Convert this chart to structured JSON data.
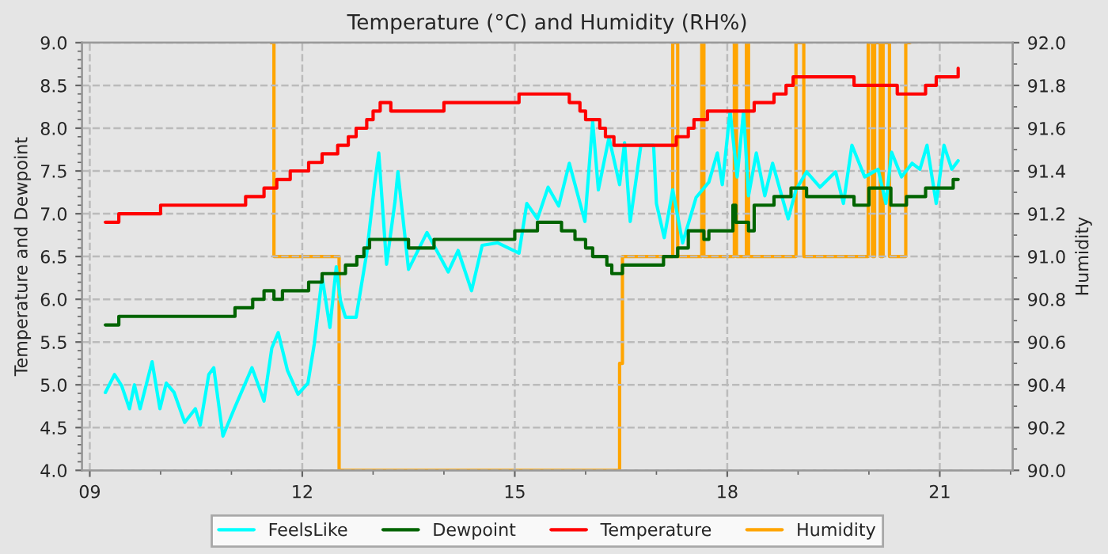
{
  "chart_data": {
    "type": "line",
    "title": "Temperature (°C) and Humidity (RH%)",
    "ylabel": "Temperature and Dewpoint",
    "y2label": "Humidity",
    "xlim": [
      8.89,
      22.03
    ],
    "xticks": [
      {
        "value": 9,
        "label": "09"
      },
      {
        "value": 10,
        "label": null
      },
      {
        "value": 11,
        "label": null
      },
      12,
      {
        "value": 13,
        "label": null
      },
      {
        "value": 14,
        "label": null
      },
      15,
      {
        "value": 16,
        "label": null
      },
      {
        "value": 17,
        "label": null
      },
      18,
      {
        "value": 19,
        "label": null
      },
      {
        "value": 20,
        "label": null
      },
      21,
      {
        "value": 22,
        "label": null
      }
    ],
    "ylim": [
      4.0,
      9.0
    ],
    "yticks": [
      {
        "value": 4.0,
        "label": "4.0"
      },
      {
        "value": 4.1,
        "label": null
      },
      {
        "value": 4.2,
        "label": null
      },
      {
        "value": 4.3,
        "label": null
      },
      {
        "value": 4.4,
        "label": null
      },
      4.5,
      {
        "value": 4.6,
        "label": null
      },
      {
        "value": 4.7,
        "label": null
      },
      {
        "value": 4.8,
        "label": null
      },
      {
        "value": 4.9,
        "label": null
      },
      {
        "value": 5.0,
        "label": "5.0"
      },
      {
        "value": 5.1,
        "label": null
      },
      {
        "value": 5.2,
        "label": null
      },
      {
        "value": 5.3,
        "label": null
      },
      {
        "value": 5.4,
        "label": null
      },
      5.5,
      {
        "value": 5.6,
        "label": null
      },
      {
        "value": 5.7,
        "label": null
      },
      {
        "value": 5.8,
        "label": null
      },
      {
        "value": 5.9,
        "label": null
      },
      {
        "value": 6.0,
        "label": "6.0"
      },
      {
        "value": 6.1,
        "label": null
      },
      {
        "value": 6.2,
        "label": null
      },
      {
        "value": 6.3,
        "label": null
      },
      {
        "value": 6.4,
        "label": null
      },
      6.5,
      {
        "value": 6.6,
        "label": null
      },
      {
        "value": 6.7,
        "label": null
      },
      {
        "value": 6.8,
        "label": null
      },
      {
        "value": 6.9,
        "label": null
      },
      {
        "value": 7.0,
        "label": "7.0"
      },
      {
        "value": 7.1,
        "label": null
      },
      {
        "value": 7.2,
        "label": null
      },
      {
        "value": 7.3,
        "label": null
      },
      {
        "value": 7.4,
        "label": null
      },
      7.5,
      {
        "value": 7.6,
        "label": null
      },
      {
        "value": 7.7,
        "label": null
      },
      {
        "value": 7.8,
        "label": null
      },
      {
        "value": 7.9,
        "label": null
      },
      {
        "value": 8.0,
        "label": "8.0"
      },
      {
        "value": 8.1,
        "label": null
      },
      {
        "value": 8.2,
        "label": null
      },
      {
        "value": 8.3,
        "label": null
      },
      {
        "value": 8.4,
        "label": null
      },
      8.5,
      {
        "value": 8.6,
        "label": null
      },
      {
        "value": 8.7,
        "label": null
      },
      {
        "value": 8.8,
        "label": null
      },
      {
        "value": 8.9,
        "label": null
      },
      {
        "value": 9.0,
        "label": "9.0"
      }
    ],
    "y2lim": [
      90.0,
      92.0
    ],
    "y2ticks": [
      {
        "value": 90.0,
        "label": "90.0"
      },
      {
        "value": 90.1,
        "label": null
      },
      90.2,
      {
        "value": 90.3,
        "label": null
      },
      90.4,
      {
        "value": 90.5,
        "label": null
      },
      90.6,
      {
        "value": 90.7,
        "label": null
      },
      90.8,
      {
        "value": 90.9,
        "label": null
      },
      {
        "value": 91.0,
        "label": "91.0"
      },
      {
        "value": 91.1,
        "label": null
      },
      91.2,
      {
        "value": 91.3,
        "label": null
      },
      91.4,
      {
        "value": 91.5,
        "label": null
      },
      91.6,
      {
        "value": 91.7,
        "label": null
      },
      91.8,
      {
        "value": 91.9,
        "label": null
      },
      {
        "value": 92.0,
        "label": "92.0"
      }
    ],
    "grid": true,
    "legend": "bottom",
    "series": [
      {
        "name": "FeelsLike",
        "color": "#00ffff",
        "x": [
          9.22,
          9.35,
          9.45,
          9.56,
          9.63,
          9.71,
          9.88,
          9.99,
          10.08,
          10.19,
          10.34,
          10.49,
          10.56,
          10.68,
          10.75,
          10.88,
          11.05,
          11.29,
          11.46,
          11.57,
          11.66,
          11.79,
          11.94,
          12.08,
          12.17,
          12.28,
          12.39,
          12.48,
          12.54,
          12.61,
          12.76,
          12.91,
          13.02,
          13.08,
          13.19,
          13.31,
          13.35,
          13.5,
          13.76,
          14.06,
          14.2,
          14.39,
          14.54,
          14.76,
          15.06,
          15.17,
          15.32,
          15.47,
          15.62,
          15.77,
          15.99,
          16.1,
          16.18,
          16.33,
          16.48,
          16.55,
          16.63,
          16.78,
          16.96,
          17.0,
          17.11,
          17.23,
          17.37,
          17.56,
          17.74,
          17.86,
          17.93,
          18.04,
          18.14,
          18.23,
          18.3,
          18.41,
          18.53,
          18.64,
          18.86,
          18.97,
          19.12,
          19.31,
          19.53,
          19.64,
          19.76,
          19.94,
          20.13,
          20.24,
          20.32,
          20.46,
          20.61,
          20.72,
          20.82,
          20.95,
          21.06,
          21.17,
          21.26
        ],
        "values": [
          4.91,
          5.12,
          4.99,
          4.72,
          5.0,
          4.72,
          5.27,
          4.72,
          5.02,
          4.91,
          4.56,
          4.72,
          4.53,
          5.12,
          5.2,
          4.4,
          4.74,
          5.2,
          4.81,
          5.43,
          5.61,
          5.17,
          4.89,
          5.02,
          5.48,
          6.26,
          5.67,
          6.38,
          5.98,
          5.79,
          5.79,
          6.54,
          7.34,
          7.71,
          6.41,
          7.15,
          7.49,
          6.35,
          6.78,
          6.32,
          6.57,
          6.1,
          6.63,
          6.66,
          6.54,
          7.12,
          6.94,
          7.31,
          7.09,
          7.59,
          6.91,
          8.08,
          7.28,
          7.89,
          7.34,
          7.83,
          6.91,
          7.8,
          7.8,
          7.12,
          6.72,
          7.28,
          6.66,
          7.19,
          7.37,
          7.71,
          7.34,
          8.2,
          7.43,
          8.2,
          7.21,
          7.71,
          7.21,
          7.59,
          6.94,
          7.28,
          7.49,
          7.31,
          7.49,
          7.12,
          7.8,
          7.43,
          7.52,
          7.12,
          7.72,
          7.43,
          7.59,
          7.52,
          7.8,
          7.12,
          7.8,
          7.52,
          7.62
        ]
      },
      {
        "name": "Dewpoint",
        "type": "step",
        "color": "#006400",
        "x": [
          9.22,
          9.41,
          11.05,
          11.3,
          11.46,
          11.6,
          11.72,
          12.09,
          12.28,
          12.61,
          12.77,
          12.87,
          12.95,
          13.5,
          13.86,
          15.0,
          15.32,
          15.66,
          15.85,
          16.0,
          16.1,
          16.3,
          16.37,
          16.52,
          17.1,
          17.3,
          17.45,
          17.67,
          17.74,
          18.08,
          18.12,
          18.3,
          18.38,
          18.66,
          18.9,
          19.12,
          19.79,
          20.0,
          20.31,
          20.53,
          20.8,
          21.19,
          21.26
        ],
        "values": [
          5.7,
          5.8,
          5.9,
          6.0,
          6.1,
          6.0,
          6.1,
          6.2,
          6.3,
          6.4,
          6.5,
          6.6,
          6.7,
          6.6,
          6.7,
          6.8,
          6.9,
          6.8,
          6.7,
          6.6,
          6.5,
          6.4,
          6.3,
          6.4,
          6.5,
          6.6,
          6.8,
          6.7,
          6.8,
          7.1,
          6.9,
          6.8,
          7.1,
          7.2,
          7.3,
          7.2,
          7.1,
          7.3,
          7.1,
          7.2,
          7.3,
          7.4,
          7.4
        ]
      },
      {
        "name": "Temperature",
        "type": "step",
        "color": "#ff0000",
        "x": [
          9.22,
          9.41,
          10.0,
          11.2,
          11.46,
          11.64,
          11.83,
          12.09,
          12.28,
          12.5,
          12.65,
          12.76,
          12.91,
          13.0,
          13.1,
          13.25,
          13.4,
          14.0,
          15.06,
          15.77,
          15.92,
          16.0,
          16.2,
          16.28,
          16.4,
          17.28,
          17.45,
          17.53,
          17.72,
          18.38,
          18.66,
          18.83,
          18.93,
          19.79,
          20.4,
          20.8,
          20.95,
          21.26
        ],
        "values": [
          6.9,
          7.0,
          7.1,
          7.2,
          7.3,
          7.4,
          7.5,
          7.6,
          7.7,
          7.8,
          7.9,
          8.0,
          8.1,
          8.2,
          8.3,
          8.2,
          8.2,
          8.3,
          8.4,
          8.3,
          8.2,
          8.1,
          8.0,
          7.9,
          7.8,
          7.9,
          8.0,
          8.1,
          8.2,
          8.3,
          8.4,
          8.5,
          8.6,
          8.5,
          8.4,
          8.5,
          8.6,
          8.7
        ]
      },
      {
        "name": "Humidity",
        "type": "step",
        "axis": "y2",
        "color": "#ffa500",
        "x": [
          11.56,
          11.6,
          12.52,
          16.48,
          16.52,
          17.23,
          17.3,
          17.64,
          17.67,
          18.1,
          18.13,
          18.27,
          18.3,
          18.97,
          19.08,
          19.99,
          20.05,
          20.08,
          20.16,
          20.2,
          20.29,
          20.52,
          20.58
        ],
        "values": [
          92.0,
          91.0,
          90.0,
          90.5,
          91.0,
          92.0,
          91.0,
          92.0,
          91.0,
          92.0,
          91.0,
          92.0,
          91.0,
          92.0,
          91.0,
          92.0,
          91.0,
          92.0,
          91.0,
          92.0,
          91.0,
          92.0,
          92.0
        ]
      }
    ]
  }
}
